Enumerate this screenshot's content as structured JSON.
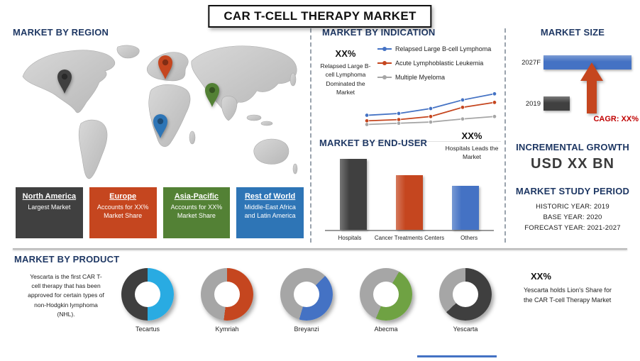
{
  "title": "CAR T-CELL THERAPY MARKET",
  "region": {
    "header": "MARKET BY REGION",
    "boxes": [
      {
        "name": "North America",
        "desc": "Largest Market",
        "color": "#404040"
      },
      {
        "name": "Europe",
        "desc": "Accounts for XX% Market Share",
        "color": "#C5461F"
      },
      {
        "name": "Asia-Pacific",
        "desc": "Accounts for XX% Market Share",
        "color": "#538135"
      },
      {
        "name": "Rest of World",
        "desc": "Middle-East Africa and Latin America",
        "color": "#2E75B6"
      }
    ]
  },
  "indication": {
    "header": "MARKET BY INDICATION",
    "callout_value": "XX%",
    "callout_text": "Relapsed Large B-cell Lymphoma Dominated the Market"
  },
  "end_user": {
    "header": "MARKET BY END-USER",
    "callout_value": "XX%",
    "callout_text": "Hospitals Leads the Market"
  },
  "market_size": {
    "header": "MARKET SIZE"
  },
  "incremental_growth": {
    "header": "INCREMENTAL GROWTH",
    "value": "USD XX BN"
  },
  "study_period": {
    "header": "MARKET STUDY PERIOD",
    "lines": [
      "HISTORIC YEAR: 2019",
      "BASE YEAR: 2020",
      "FORECAST YEAR: 2021-2027"
    ]
  },
  "product": {
    "header": "MARKET BY PRODUCT",
    "note": "Yescarta is the first CAR T-cell therapy that has been approved for certain types of non-Hodgkin lymphoma (NHL).",
    "callout_value": "XX%",
    "callout_text": "Yescarta holds Lion's Share for the CAR T-cell Therapy Market"
  },
  "chart_data": [
    {
      "type": "line",
      "title": "MARKET BY INDICATION",
      "x": [
        1,
        2,
        3,
        4,
        5
      ],
      "series": [
        {
          "name": "Relapsed Large B-cell Lymphoma",
          "color": "#4472C4",
          "values": [
            33,
            36,
            44,
            58,
            68
          ]
        },
        {
          "name": "Acute Lymphoblastic Leukemia",
          "color": "#C5461F",
          "values": [
            24,
            26,
            31,
            46,
            54
          ]
        },
        {
          "name": "Multiple Myeloma",
          "color": "#A6A6A6",
          "values": [
            18,
            20,
            22,
            27,
            31
          ]
        }
      ],
      "ylim": [
        0,
        80
      ],
      "grid": false,
      "legend_position": "top-right"
    },
    {
      "type": "bar",
      "title": "MARKET BY END-USER",
      "categories": [
        "Hospitals",
        "Cancer Treatments Centers",
        "Others"
      ],
      "values": [
        100,
        77,
        62
      ],
      "colors": [
        "#404040",
        "#C5461F",
        "#4472C4"
      ]
    },
    {
      "type": "bar",
      "title": "MARKET SIZE",
      "orientation": "horizontal",
      "categories": [
        "2027F",
        "2019"
      ],
      "values": [
        100,
        30
      ],
      "colors": [
        "#4472C4",
        "#404040"
      ],
      "annotation": "CAGR: XX%",
      "annotation_color": "#C00000",
      "arrow_color": "#C5461F"
    },
    {
      "type": "pie",
      "style": "donut",
      "title": "MARKET BY PRODUCT",
      "slices": [
        {
          "label": "Tecartus",
          "share_pct": 50,
          "start_deg": 0,
          "color": "#29ABE2",
          "remainder_color": "#3F3F3F"
        },
        {
          "label": "Kymriah",
          "share_pct": 52,
          "start_deg": 0,
          "color": "#C5461F",
          "remainder_color": "#A6A6A6"
        },
        {
          "label": "Breyanzi",
          "share_pct": 42,
          "start_deg": 45,
          "color": "#4472C4",
          "remainder_color": "#A6A6A6"
        },
        {
          "label": "Abecma",
          "share_pct": 48,
          "start_deg": 30,
          "color": "#6FA243",
          "remainder_color": "#A6A6A6"
        },
        {
          "label": "Yescarta",
          "share_pct": 63,
          "start_deg": 0,
          "color": "#3F3F3F",
          "remainder_color": "#A6A6A6"
        }
      ]
    }
  ],
  "decor": {
    "footer_line_color": "#4472C4",
    "map_fill": "#C9C9C9"
  }
}
